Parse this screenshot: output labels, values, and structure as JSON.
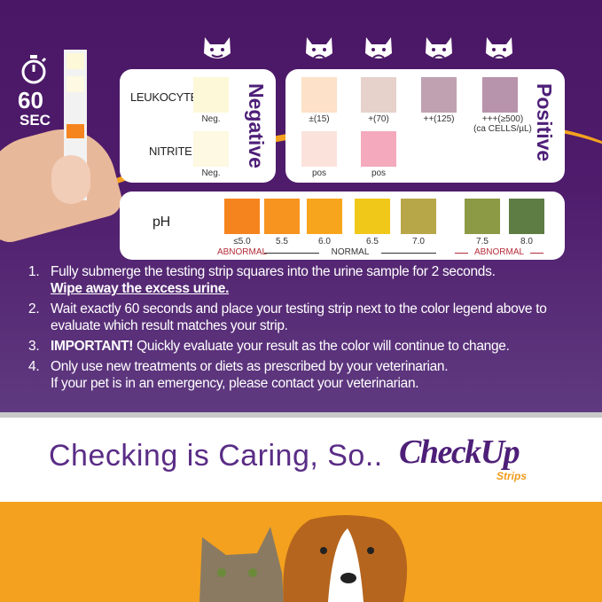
{
  "timer": {
    "value": "60",
    "unit": "SEC"
  },
  "negative_card": {
    "title": "Negative",
    "rows": [
      {
        "label": "LEUKOCYTES",
        "swatch": {
          "color": "#fdf8d8",
          "label": "Neg."
        }
      },
      {
        "label": "NITRITE",
        "swatch": {
          "color": "#fdf9e2",
          "label": "Neg."
        }
      }
    ]
  },
  "positive_card": {
    "title": "Positive",
    "leukocytes": [
      {
        "color": "#fde1c8",
        "label": "±(15)"
      },
      {
        "color": "#e6d2cb",
        "label": "+(70)"
      },
      {
        "color": "#bfa1b1",
        "label": "++(125)"
      },
      {
        "color": "#b893ac",
        "label": "+++(≥500)",
        "sublabel": "(ca CELLS/µL)"
      }
    ],
    "nitrite": [
      {
        "color": "#fbe3dc",
        "label": "pos"
      },
      {
        "color": "#f4a9bc",
        "label": "pos"
      }
    ]
  },
  "ph_card": {
    "label": "pH",
    "swatches": [
      {
        "color": "#f6841e",
        "label": "≤5.0"
      },
      {
        "color": "#f7941f",
        "label": "5.5"
      },
      {
        "color": "#f8a51e",
        "label": "6.0"
      },
      {
        "color": "#f0c81a",
        "label": "6.5"
      },
      {
        "color": "#b8a748",
        "label": "7.0"
      },
      {
        "color": "#8c9a45",
        "label": "7.5"
      },
      {
        "color": "#5e7d45",
        "label": "8.0"
      }
    ],
    "ranges": {
      "low": "ABNORMAL",
      "normal": "NORMAL",
      "high": "ABNORMAL"
    },
    "abnormal_color": "#b52d3a"
  },
  "instructions": [
    {
      "num": "1.",
      "text": "Fully submerge the testing strip squares into the urine sample for 2 seconds.",
      "emph": "Wipe away the excess urine."
    },
    {
      "num": "2.",
      "text": "Wait exactly 60 seconds and place your testing strip next to the color legend above to evaluate which result matches your strip."
    },
    {
      "num": "3.",
      "bold": "IMPORTANT!",
      "text": " Quickly evaluate your result as the color will continue to change."
    },
    {
      "num": "4.",
      "text": "Only use new treatments or diets as prescribed by your veterinarian.",
      "line2": "If your pet is in an emergency, please contact your veterinarian."
    }
  ],
  "tagline": "Checking is Caring, So..",
  "logo": {
    "name": "CheckUp",
    "sub": "Strips"
  },
  "colors": {
    "purple": "#4e1f78",
    "orange": "#f4a11f"
  }
}
